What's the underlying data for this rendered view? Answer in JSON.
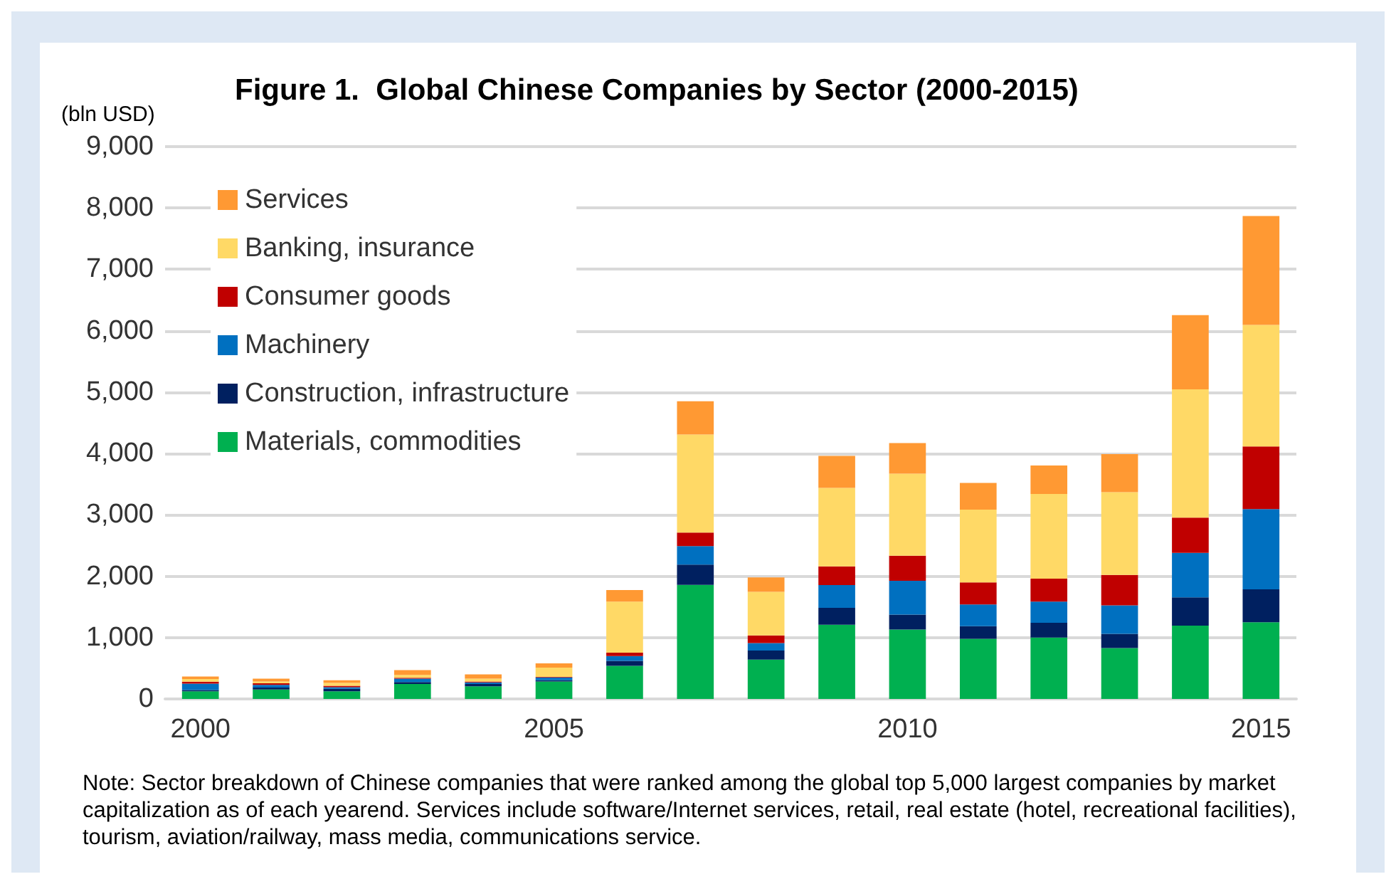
{
  "chart_data": {
    "type": "bar",
    "stacked": true,
    "title": "Figure 1.  Global Chinese Companies by Sector (2000-2015)",
    "ylabel": "(bln USD)",
    "categories": [
      "2000",
      null,
      null,
      null,
      null,
      "2005",
      null,
      null,
      null,
      null,
      "2010",
      null,
      null,
      null,
      null,
      "2015"
    ],
    "series": [
      {
        "name": "Materials, commodities",
        "color": "#00b050",
        "values": [
          125,
          155,
          125,
          245,
          205,
          285,
          540,
          1860,
          640,
          1210,
          1130,
          980,
          1000,
          830,
          1195,
          1250
        ]
      },
      {
        "name": "Construction, infrastructure",
        "color": "#002060",
        "values": [
          20,
          30,
          40,
          30,
          40,
          20,
          80,
          330,
          150,
          275,
          245,
          205,
          240,
          230,
          460,
          535
        ]
      },
      {
        "name": "Machinery",
        "color": "#0070c0",
        "values": [
          105,
          45,
          25,
          55,
          25,
          45,
          80,
          300,
          120,
          370,
          550,
          355,
          345,
          465,
          725,
          1310
        ]
      },
      {
        "name": "Consumer goods",
        "color": "#c00000",
        "values": [
          30,
          25,
          25,
          15,
          15,
          10,
          55,
          220,
          125,
          305,
          410,
          360,
          375,
          495,
          575,
          1020
        ]
      },
      {
        "name": "Banking, insurance",
        "color": "#ffd966",
        "values": [
          45,
          30,
          45,
          45,
          45,
          150,
          830,
          1600,
          710,
          1280,
          1335,
          1185,
          1380,
          1350,
          2090,
          1980
        ]
      },
      {
        "name": "Services",
        "color": "#ff9933",
        "values": [
          40,
          45,
          45,
          80,
          70,
          70,
          190,
          540,
          235,
          520,
          500,
          435,
          465,
          620,
          1210,
          1775
        ]
      }
    ],
    "ylim": [
      0,
      9000
    ],
    "yticks": [
      0,
      {
        "value": 1000,
        "label": "1,000"
      },
      {
        "value": 2000,
        "label": "2,000"
      },
      {
        "value": 3000,
        "label": "3,000"
      },
      {
        "value": 4000,
        "label": "4,000"
      },
      {
        "value": 5000,
        "label": "5,000"
      },
      {
        "value": 6000,
        "label": "6,000"
      },
      {
        "value": 7000,
        "label": "7,000"
      },
      {
        "value": 8000,
        "label": "8,000"
      },
      {
        "value": 9000,
        "label": "9,000"
      }
    ],
    "grid": "y",
    "legend": "top left",
    "annotations": [
      "Note: Sector breakdown of Chinese companies that were ranked among the global top 5,000 largest companies by market capitalization as of each yearend. Services include software/Internet services, retail, real estate (hotel, recreational facilities), tourism, aviation/railway, mass media, communications service."
    ]
  }
}
